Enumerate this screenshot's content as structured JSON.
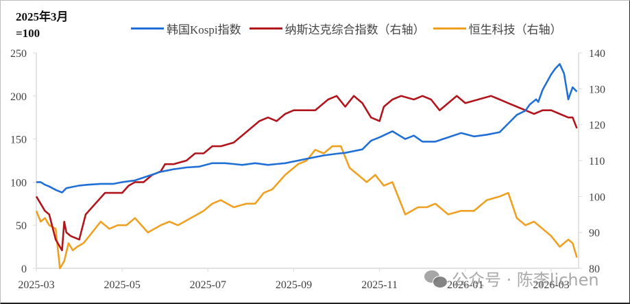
{
  "chart_data": {
    "type": "line",
    "title": "",
    "unit_label": "2025年3月\n=100",
    "xlabel": "",
    "ylabel_left": "2025年3月=100",
    "ylabel_right": "",
    "x_ticks": [
      "2025-03",
      "2025-05",
      "2025-07",
      "2025-09",
      "2025-11",
      "2026-01",
      "2026-03"
    ],
    "y_left": {
      "min": 0,
      "max": 250,
      "ticks": [
        0,
        50,
        100,
        150,
        200,
        250
      ]
    },
    "y_right": {
      "min": 80,
      "max": 140,
      "ticks": [
        80,
        90,
        100,
        110,
        120,
        130,
        140
      ]
    },
    "legend_position": "top",
    "grid": false,
    "x_range_months": [
      0,
      12.6
    ],
    "series": [
      {
        "name": "韩国Kospi指数",
        "axis": "left",
        "color": "#1f6fd6",
        "x": [
          0,
          0.1,
          0.2,
          0.3,
          0.45,
          0.6,
          0.7,
          0.8,
          1.0,
          1.2,
          1.5,
          1.8,
          2.0,
          2.3,
          2.6,
          2.9,
          3.2,
          3.5,
          3.8,
          4.1,
          4.4,
          4.6,
          4.8,
          5.1,
          5.4,
          5.6,
          5.8,
          6.1,
          6.4,
          6.7,
          7.0,
          7.2,
          7.4,
          7.6,
          7.8,
          8.0,
          8.3,
          8.6,
          8.8,
          9.0,
          9.3,
          9.6,
          9.9,
          10.2,
          10.5,
          10.8,
          11.0,
          11.2,
          11.4,
          11.5,
          11.65,
          11.7,
          11.8,
          11.9,
          12.0,
          12.1,
          12.2,
          12.3,
          12.4,
          12.5,
          12.6
        ],
        "values": [
          100,
          100,
          97,
          95,
          91,
          88,
          93,
          94,
          96,
          97,
          98,
          98,
          100,
          102,
          107,
          112,
          115,
          117,
          118,
          122,
          122,
          121,
          120,
          122,
          120,
          121,
          122,
          125,
          128,
          131,
          133,
          134,
          136,
          138,
          148,
          152,
          159,
          150,
          154,
          147,
          147,
          152,
          157,
          153,
          155,
          158,
          168,
          178,
          183,
          190,
          196,
          193,
          207,
          216,
          225,
          232,
          237,
          226,
          196,
          210,
          205
        ]
      },
      {
        "name": "纳斯达克综合指数（右轴）",
        "axis": "right",
        "color": "#b2141c",
        "x": [
          0,
          0.1,
          0.2,
          0.3,
          0.45,
          0.55,
          0.6,
          0.65,
          0.7,
          0.8,
          1.0,
          1.15,
          1.3,
          1.45,
          1.6,
          1.8,
          2.0,
          2.15,
          2.3,
          2.5,
          2.7,
          2.9,
          3.0,
          3.2,
          3.5,
          3.7,
          3.9,
          4.1,
          4.3,
          4.6,
          4.8,
          5.0,
          5.2,
          5.4,
          5.6,
          5.8,
          6.0,
          6.2,
          6.5,
          6.8,
          7.0,
          7.2,
          7.4,
          7.6,
          7.8,
          8.0,
          8.1,
          8.3,
          8.5,
          8.8,
          9.0,
          9.2,
          9.4,
          9.6,
          9.8,
          10.0,
          10.3,
          10.6,
          10.8,
          11.0,
          11.2,
          11.4,
          11.6,
          11.8,
          12.0,
          12.2,
          12.4,
          12.5,
          12.6
        ],
        "values": [
          100,
          98,
          96,
          95,
          88,
          86,
          85,
          93,
          90,
          89,
          88,
          95,
          97,
          99,
          101,
          101,
          101,
          103,
          104,
          104,
          106,
          107,
          109,
          109,
          110,
          112,
          112,
          114,
          114,
          115,
          117,
          119,
          121,
          122,
          121,
          123,
          124,
          124,
          124,
          127,
          128,
          125,
          128,
          126,
          122,
          121,
          125,
          127,
          128,
          127,
          128,
          127,
          124,
          126,
          128,
          126,
          127,
          128,
          127,
          126,
          125,
          124,
          123,
          124,
          124,
          123,
          122,
          122,
          119
        ]
      },
      {
        "name": "恒生科技（右轴）",
        "axis": "right",
        "color": "#f0a020",
        "x": [
          0,
          0.1,
          0.2,
          0.3,
          0.45,
          0.55,
          0.65,
          0.75,
          0.85,
          0.95,
          1.1,
          1.3,
          1.5,
          1.7,
          1.9,
          2.1,
          2.3,
          2.6,
          2.9,
          3.1,
          3.3,
          3.6,
          3.9,
          4.1,
          4.3,
          4.6,
          4.9,
          5.1,
          5.3,
          5.5,
          5.8,
          6.1,
          6.3,
          6.5,
          6.7,
          6.9,
          7.1,
          7.3,
          7.5,
          7.7,
          7.9,
          8.1,
          8.3,
          8.6,
          8.9,
          9.1,
          9.3,
          9.6,
          9.9,
          10.2,
          10.5,
          10.8,
          11.0,
          11.2,
          11.4,
          11.6,
          11.8,
          12.0,
          12.2,
          12.4,
          12.5,
          12.6
        ],
        "values": [
          96,
          93,
          94,
          92,
          91,
          80,
          82,
          87,
          85,
          86,
          87,
          90,
          93,
          91,
          92,
          92,
          94,
          90,
          92,
          93,
          92,
          94,
          96,
          98,
          99,
          97,
          98,
          98,
          101,
          102,
          106,
          109,
          110,
          113,
          112,
          114,
          114,
          108,
          106,
          104,
          106,
          103,
          104,
          95,
          97,
          97,
          98,
          95,
          96,
          96,
          99,
          100,
          101,
          94,
          92,
          93,
          91,
          89,
          86,
          88,
          87,
          83
        ]
      }
    ]
  },
  "watermark": {
    "text": "公众号 · 陈李lichen",
    "icon": "wechat-icon"
  },
  "colors": {
    "kospi": "#1f6fd6",
    "nasdaq": "#b2141c",
    "hstech": "#f0a020",
    "axis": "#d9d9d9"
  }
}
